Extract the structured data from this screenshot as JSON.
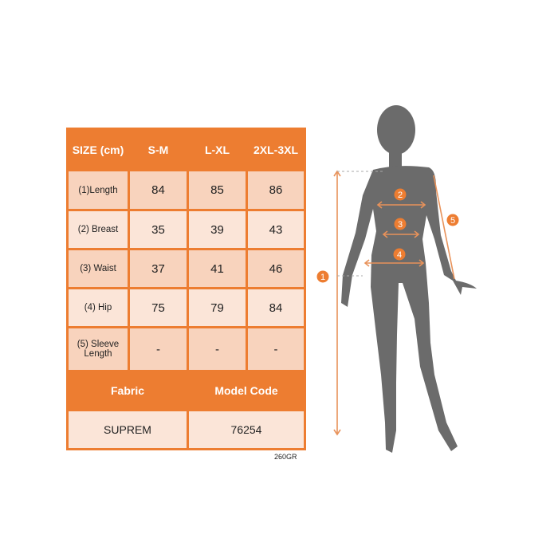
{
  "size_table": {
    "header": [
      "SIZE (cm)",
      "S-M",
      "L-XL",
      "2XL-3XL"
    ],
    "rows": [
      {
        "label": "(1)Length",
        "values": [
          "84",
          "85",
          "86"
        ]
      },
      {
        "label": "(2) Breast",
        "values": [
          "35",
          "39",
          "43"
        ]
      },
      {
        "label": "(3) Waist",
        "values": [
          "37",
          "41",
          "46"
        ]
      },
      {
        "label": "(4) Hip",
        "values": [
          "75",
          "79",
          "84"
        ]
      },
      {
        "label": "(5) Sleeve Length",
        "values": [
          "-",
          "-",
          "-"
        ]
      }
    ],
    "fabric_label": "Fabric",
    "model_code_label": "Model Code",
    "fabric_value": "SUPREM",
    "model_code_value": "76254"
  },
  "weight_note": "260GR",
  "figure": {
    "markers": [
      "1",
      "2",
      "3",
      "4",
      "5"
    ]
  },
  "colors": {
    "accent": "#ed7d31",
    "silhouette": "#6b6b6b"
  }
}
